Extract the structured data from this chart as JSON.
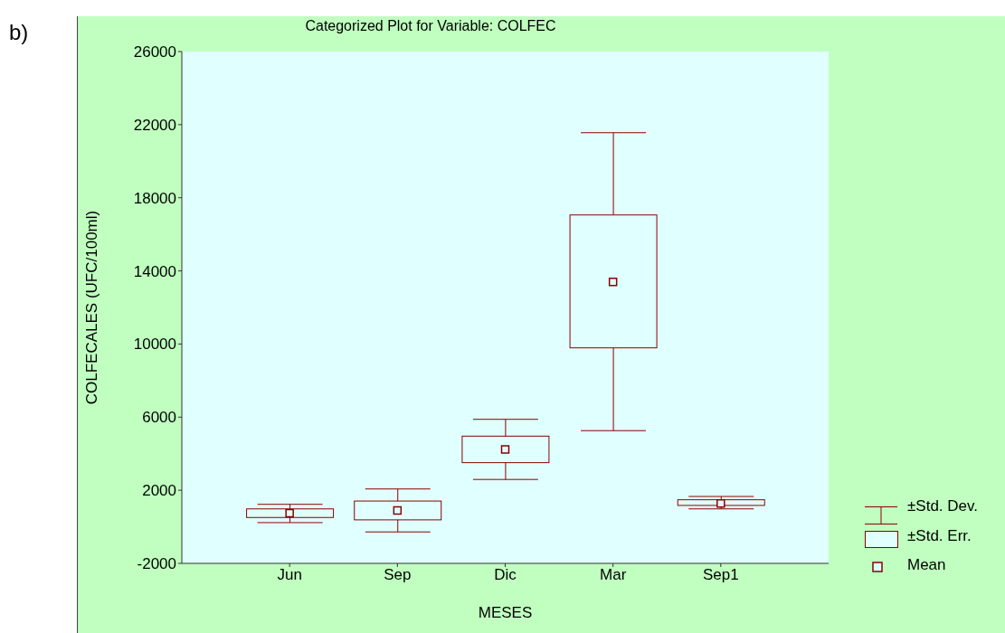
{
  "chart_data": {
    "type": "box",
    "title": "Categorized Plot for Variable: COLFEC",
    "xlabel": "MESES",
    "ylabel": "COLFECALES (UFC/100ml)",
    "categories": [
      "Jun",
      "Sep",
      "Dic",
      "Mar",
      "Sep1"
    ],
    "series": [
      {
        "color": "#8b0000",
        "boxes": [
          {
            "low": 230,
            "q1": 510,
            "q3": 980,
            "high": 1230,
            "mean": 740
          },
          {
            "low": -280,
            "q1": 380,
            "q3": 1410,
            "high": 2070,
            "mean": 900
          },
          {
            "low": 2590,
            "q1": 3510,
            "q3": 4960,
            "high": 5880,
            "mean": 4230
          },
          {
            "low": 5260,
            "q1": 9790,
            "q3": 17060,
            "high": 21560,
            "mean": 13400
          },
          {
            "low": 980,
            "q1": 1170,
            "q3": 1480,
            "high": 1660,
            "mean": 1280
          }
        ]
      }
    ],
    "ylim": [
      -2000,
      26000
    ],
    "yticks": [
      -2000,
      2000,
      6000,
      10000,
      14000,
      18000,
      22000,
      26000
    ],
    "annotations": [
      "b)",
      "±Std. Dev.",
      "±Std. Err.",
      "Mean"
    ]
  }
}
